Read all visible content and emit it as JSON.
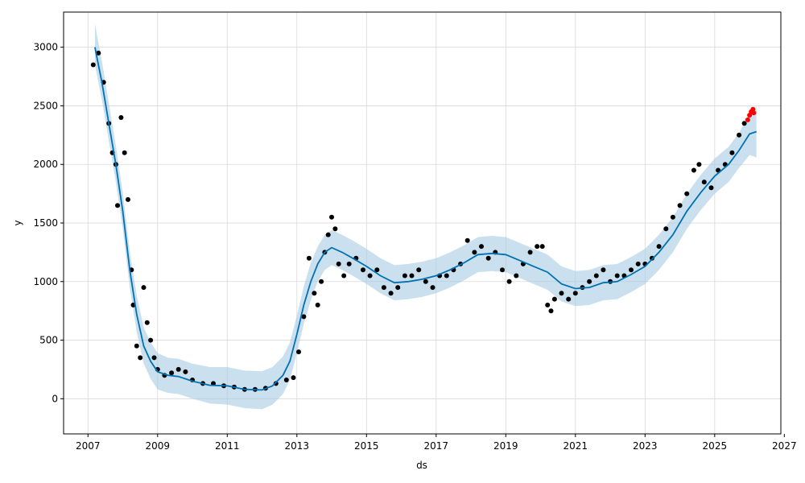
{
  "chart_data": {
    "type": "line",
    "title": "",
    "xlabel": "ds",
    "ylabel": "y",
    "xlim": [
      2006.3,
      2026.9
    ],
    "ylim": [
      -300,
      3300
    ],
    "x_ticks": [
      2007,
      2009,
      2011,
      2013,
      2015,
      2017,
      2019,
      2021,
      2023,
      2025,
      2027
    ],
    "y_ticks": [
      0,
      500,
      1000,
      1500,
      2000,
      2500,
      3000
    ],
    "grid": true,
    "legend": "none",
    "colors": {
      "forecast_line": "#0072B2",
      "uncertainty_band": "#a6cbe3",
      "observed_points": "#000000",
      "recent_points": "#ff0000",
      "grid": "#d9d9d9"
    },
    "forecast": {
      "x": [
        2007.2,
        2007.4,
        2007.6,
        2007.8,
        2008.0,
        2008.2,
        2008.4,
        2008.6,
        2008.8,
        2009.0,
        2009.3,
        2009.6,
        2010.0,
        2010.5,
        2011.0,
        2011.5,
        2012.0,
        2012.3,
        2012.6,
        2012.8,
        2013.0,
        2013.2,
        2013.4,
        2013.6,
        2013.8,
        2014.0,
        2014.3,
        2014.6,
        2015.0,
        2015.4,
        2015.8,
        2016.2,
        2016.6,
        2017.0,
        2017.4,
        2017.8,
        2018.2,
        2018.6,
        2019.0,
        2019.4,
        2019.8,
        2020.2,
        2020.6,
        2021.0,
        2021.4,
        2021.8,
        2022.2,
        2022.6,
        2023.0,
        2023.4,
        2023.8,
        2024.2,
        2024.6,
        2025.0,
        2025.4,
        2025.7,
        2026.0,
        2026.2
      ],
      "y": [
        3000,
        2700,
        2350,
        2000,
        1600,
        1100,
        720,
        450,
        320,
        230,
        200,
        190,
        150,
        115,
        110,
        80,
        75,
        110,
        200,
        320,
        550,
        800,
        1000,
        1150,
        1250,
        1290,
        1250,
        1200,
        1130,
        1050,
        990,
        1000,
        1020,
        1050,
        1100,
        1160,
        1230,
        1240,
        1230,
        1180,
        1130,
        1080,
        980,
        940,
        950,
        990,
        1000,
        1060,
        1130,
        1250,
        1400,
        1600,
        1760,
        1900,
        2000,
        2120,
        2260,
        2280
      ]
    },
    "band_lower": [
      2850,
      2550,
      2200,
      1850,
      1450,
      950,
      570,
      300,
      170,
      80,
      50,
      40,
      0,
      -40,
      -50,
      -80,
      -90,
      -50,
      40,
      160,
      390,
      640,
      840,
      1000,
      1100,
      1140,
      1100,
      1050,
      980,
      900,
      840,
      850,
      870,
      900,
      950,
      1010,
      1080,
      1090,
      1080,
      1030,
      980,
      930,
      830,
      790,
      800,
      840,
      850,
      910,
      980,
      1100,
      1250,
      1450,
      1610,
      1750,
      1850,
      1970,
      2080,
      2060
    ],
    "band_upper": [
      3200,
      2880,
      2520,
      2160,
      1760,
      1260,
      880,
      610,
      480,
      390,
      350,
      340,
      300,
      270,
      270,
      240,
      235,
      270,
      360,
      480,
      710,
      960,
      1160,
      1300,
      1400,
      1440,
      1400,
      1350,
      1280,
      1200,
      1140,
      1150,
      1170,
      1200,
      1250,
      1310,
      1380,
      1390,
      1380,
      1330,
      1280,
      1230,
      1130,
      1090,
      1100,
      1140,
      1150,
      1210,
      1280,
      1400,
      1550,
      1750,
      1910,
      2050,
      2150,
      2270,
      2430,
      2490
    ],
    "observed": {
      "x": [
        2007.15,
        2007.3,
        2007.45,
        2007.6,
        2007.7,
        2007.8,
        2007.85,
        2007.95,
        2008.05,
        2008.15,
        2008.25,
        2008.3,
        2008.4,
        2008.5,
        2008.6,
        2008.7,
        2008.8,
        2008.9,
        2009.0,
        2009.2,
        2009.4,
        2009.6,
        2009.8,
        2010.0,
        2010.3,
        2010.6,
        2010.9,
        2011.2,
        2011.5,
        2011.8,
        2012.1,
        2012.4,
        2012.7,
        2012.9,
        2013.05,
        2013.2,
        2013.35,
        2013.5,
        2013.6,
        2013.7,
        2013.8,
        2013.9,
        2014.0,
        2014.1,
        2014.2,
        2014.35,
        2014.5,
        2014.7,
        2014.9,
        2015.1,
        2015.3,
        2015.5,
        2015.7,
        2015.9,
        2016.1,
        2016.3,
        2016.5,
        2016.7,
        2016.9,
        2017.1,
        2017.3,
        2017.5,
        2017.7,
        2017.9,
        2018.1,
        2018.3,
        2018.5,
        2018.7,
        2018.9,
        2019.1,
        2019.3,
        2019.5,
        2019.7,
        2019.9,
        2020.05,
        2020.2,
        2020.3,
        2020.4,
        2020.6,
        2020.8,
        2021.0,
        2021.2,
        2021.4,
        2021.6,
        2021.8,
        2022.0,
        2022.2,
        2022.4,
        2022.6,
        2022.8,
        2023.0,
        2023.2,
        2023.4,
        2023.6,
        2023.8,
        2024.0,
        2024.2,
        2024.4,
        2024.55,
        2024.7,
        2024.9,
        2025.1,
        2025.3,
        2025.5,
        2025.7,
        2025.85
      ],
      "y": [
        2850,
        2950,
        2700,
        2350,
        2100,
        2000,
        1650,
        2400,
        2100,
        1700,
        1100,
        800,
        450,
        350,
        950,
        650,
        500,
        350,
        250,
        200,
        220,
        250,
        230,
        160,
        130,
        130,
        110,
        100,
        80,
        80,
        90,
        130,
        160,
        180,
        400,
        700,
        1200,
        900,
        800,
        1000,
        1250,
        1400,
        1550,
        1450,
        1150,
        1050,
        1150,
        1200,
        1100,
        1050,
        1100,
        950,
        900,
        950,
        1050,
        1050,
        1100,
        1000,
        950,
        1050,
        1050,
        1100,
        1150,
        1350,
        1250,
        1300,
        1200,
        1250,
        1100,
        1000,
        1050,
        1150,
        1250,
        1300,
        1300,
        800,
        750,
        850,
        900,
        850,
        900,
        950,
        1000,
        1050,
        1100,
        1000,
        1050,
        1050,
        1100,
        1150,
        1150,
        1200,
        1300,
        1450,
        1550,
        1650,
        1750,
        1950,
        2000,
        1850,
        1800,
        1950,
        2000,
        2100,
        2250,
        2350
      ]
    },
    "recent": {
      "x": [
        2025.95,
        2026.0,
        2026.05,
        2026.1,
        2026.12
      ],
      "y": [
        2380,
        2420,
        2450,
        2470,
        2440
      ]
    }
  }
}
